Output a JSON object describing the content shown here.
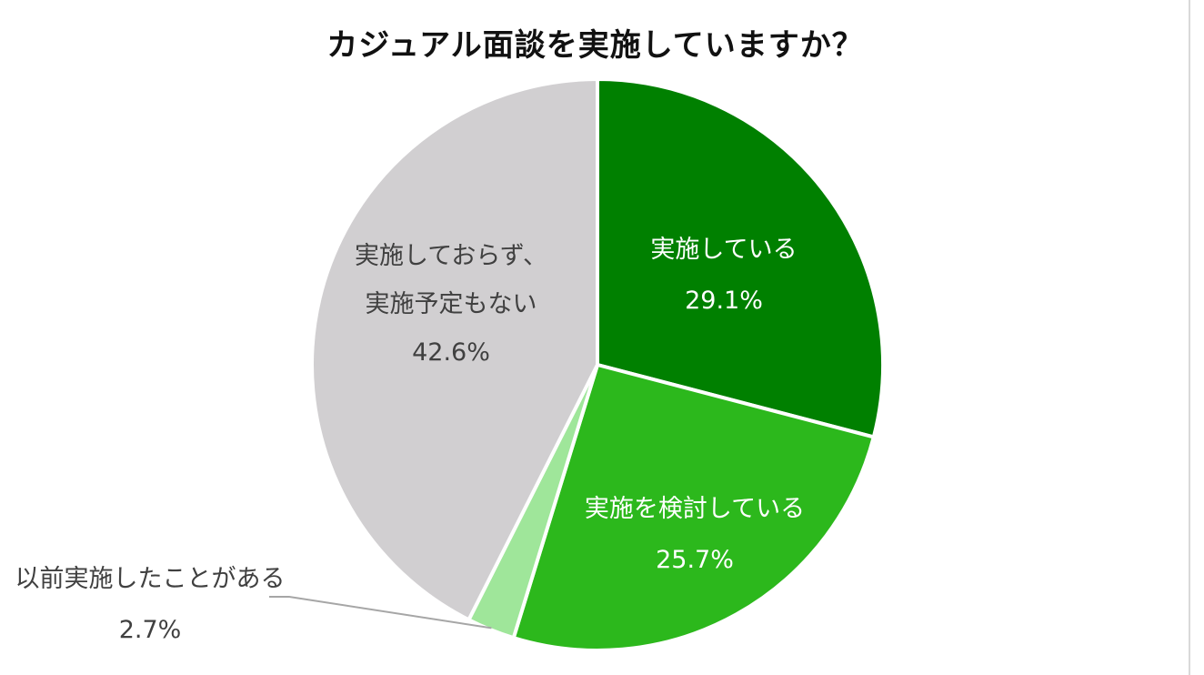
{
  "chart_data": {
    "type": "pie",
    "title": "カジュアル面談を実施していますか？",
    "slices": [
      {
        "label": "実施している",
        "value": 29.1,
        "value_label": "29.1%",
        "color": "#008000",
        "text_color": "#ffffff"
      },
      {
        "label": "実施を検討している",
        "value": 25.7,
        "value_label": "25.7%",
        "color": "#2cb81c",
        "text_color": "#ffffff"
      },
      {
        "label": "以前実施したことがある",
        "value": 2.7,
        "value_label": "2.7%",
        "color": "#9fe69a",
        "text_color": "#404040"
      },
      {
        "label": "実施しておらず、実施予定もない",
        "value": 42.6,
        "value_label": "42.6%",
        "color": "#d1cfd1",
        "text_color": "#404040"
      }
    ],
    "label_lines": [
      [
        "実施している",
        "29.1%"
      ],
      [
        "実施を検討している",
        "25.7%"
      ],
      [
        "以前実施したことがある",
        "2.7%"
      ],
      [
        "実施しておらず、",
        "実施予定もない",
        "42.6%"
      ]
    ],
    "start_angle": "12 o'clock",
    "direction": "clockwise",
    "legend": "none"
  }
}
